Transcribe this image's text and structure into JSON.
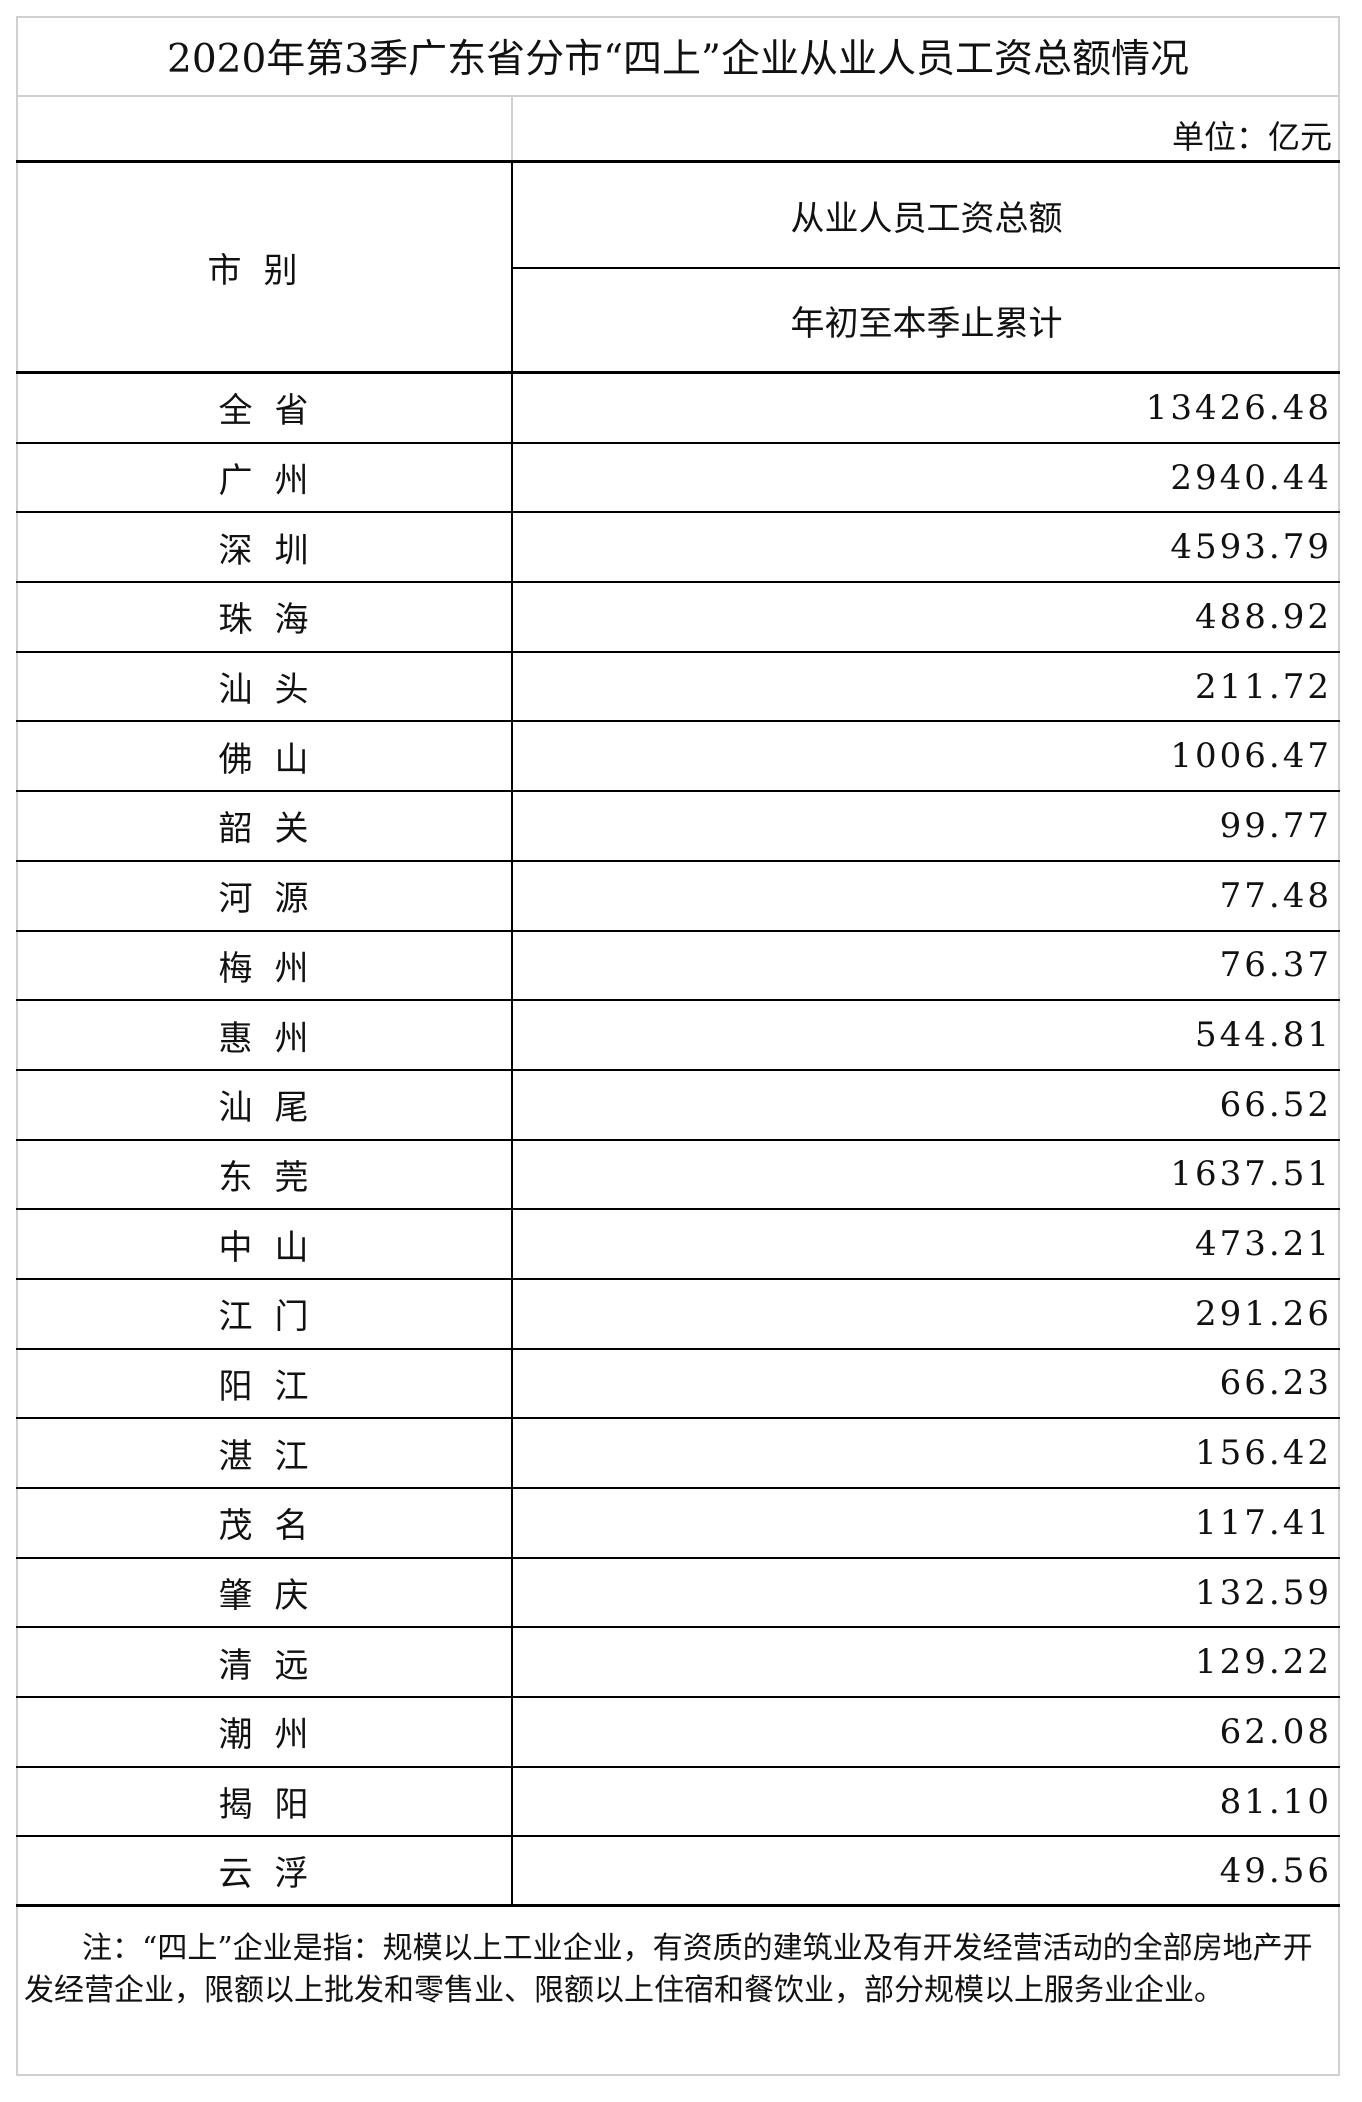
{
  "title": "2020年第3季广东省分市“四上”企业从业人员工资总额情况",
  "unit": "单位：亿元",
  "header": {
    "city": "市别",
    "metric": "从业人员工资总额",
    "period": "年初至本季止累计"
  },
  "rows": [
    {
      "city": "全省",
      "value": "13426.48"
    },
    {
      "city": "广州",
      "value": "2940.44"
    },
    {
      "city": "深圳",
      "value": "4593.79"
    },
    {
      "city": "珠海",
      "value": "488.92"
    },
    {
      "city": "汕头",
      "value": "211.72"
    },
    {
      "city": "佛山",
      "value": "1006.47"
    },
    {
      "city": "韶关",
      "value": "99.77"
    },
    {
      "city": "河源",
      "value": "77.48"
    },
    {
      "city": "梅州",
      "value": "76.37"
    },
    {
      "city": "惠州",
      "value": "544.81"
    },
    {
      "city": "汕尾",
      "value": "66.52"
    },
    {
      "city": "东莞",
      "value": "1637.51"
    },
    {
      "city": "中山",
      "value": "473.21"
    },
    {
      "city": "江门",
      "value": "291.26"
    },
    {
      "city": "阳江",
      "value": "66.23"
    },
    {
      "city": "湛江",
      "value": "156.42"
    },
    {
      "city": "茂名",
      "value": "117.41"
    },
    {
      "city": "肇庆",
      "value": "132.59"
    },
    {
      "city": "清远",
      "value": "129.22"
    },
    {
      "city": "潮州",
      "value": "62.08"
    },
    {
      "city": "揭阳",
      "value": "81.10"
    },
    {
      "city": "云浮",
      "value": "49.56"
    }
  ],
  "note": "注：“四上”企业是指：规模以上工业企业，有资质的建筑业及有开发经营活动的全部房地产开发经营企业，限额以上批发和零售业、限额以上住宿和餐饮业，部分规模以上服务业企业。"
}
